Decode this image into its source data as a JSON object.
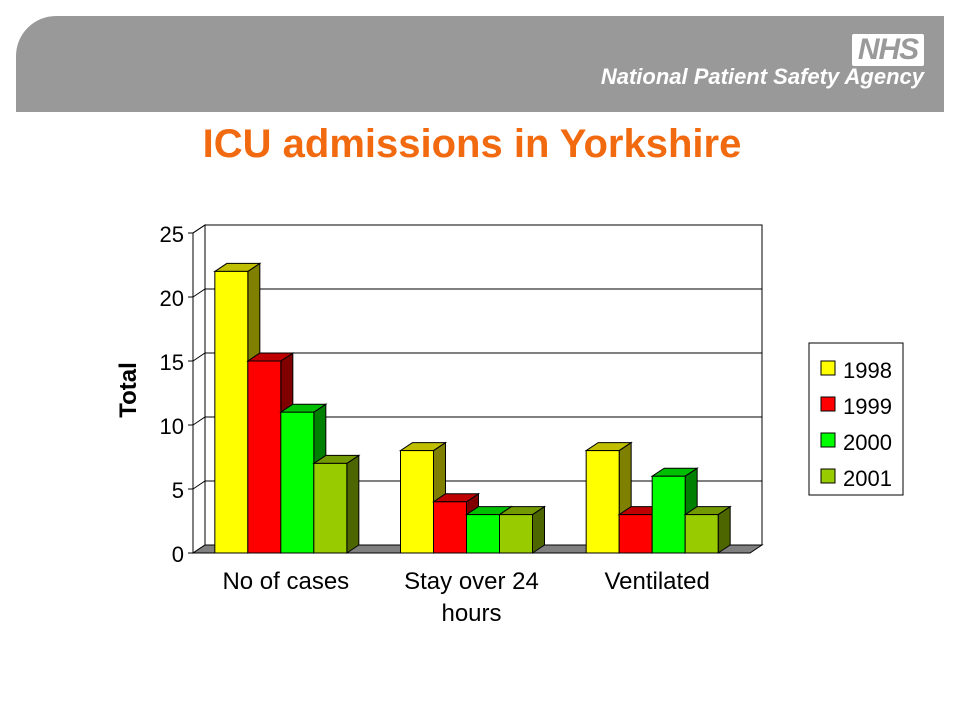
{
  "header": {
    "logo_text": "NHS",
    "agency_name": "National Patient Safety Agency"
  },
  "title": "ICU admissions in Yorkshire",
  "colors": {
    "banner": "#999999",
    "title": "#f26a10",
    "series": [
      "#ffff00",
      "#ff0000",
      "#00ff00",
      "#99cc00"
    ]
  },
  "chart_data": {
    "type": "bar",
    "title": "ICU admissions in Yorkshire",
    "xlabel": "",
    "ylabel": "Total",
    "ylim": [
      0,
      25
    ],
    "yticks": [
      0,
      5,
      10,
      15,
      20,
      25
    ],
    "grid": true,
    "legend": "right",
    "three_d": true,
    "categories": [
      [
        "No of cases"
      ],
      [
        "Stay over 24",
        "hours"
      ],
      [
        "Ventilated"
      ]
    ],
    "series": [
      {
        "name": "1998",
        "color": "#ffff00",
        "values": [
          22,
          8,
          8
        ]
      },
      {
        "name": "1999",
        "color": "#ff0000",
        "values": [
          15,
          4,
          3
        ]
      },
      {
        "name": "2000",
        "color": "#00ff00",
        "values": [
          11,
          3,
          6
        ]
      },
      {
        "name": "2001",
        "color": "#99cc00",
        "values": [
          7,
          3,
          3
        ]
      }
    ]
  }
}
